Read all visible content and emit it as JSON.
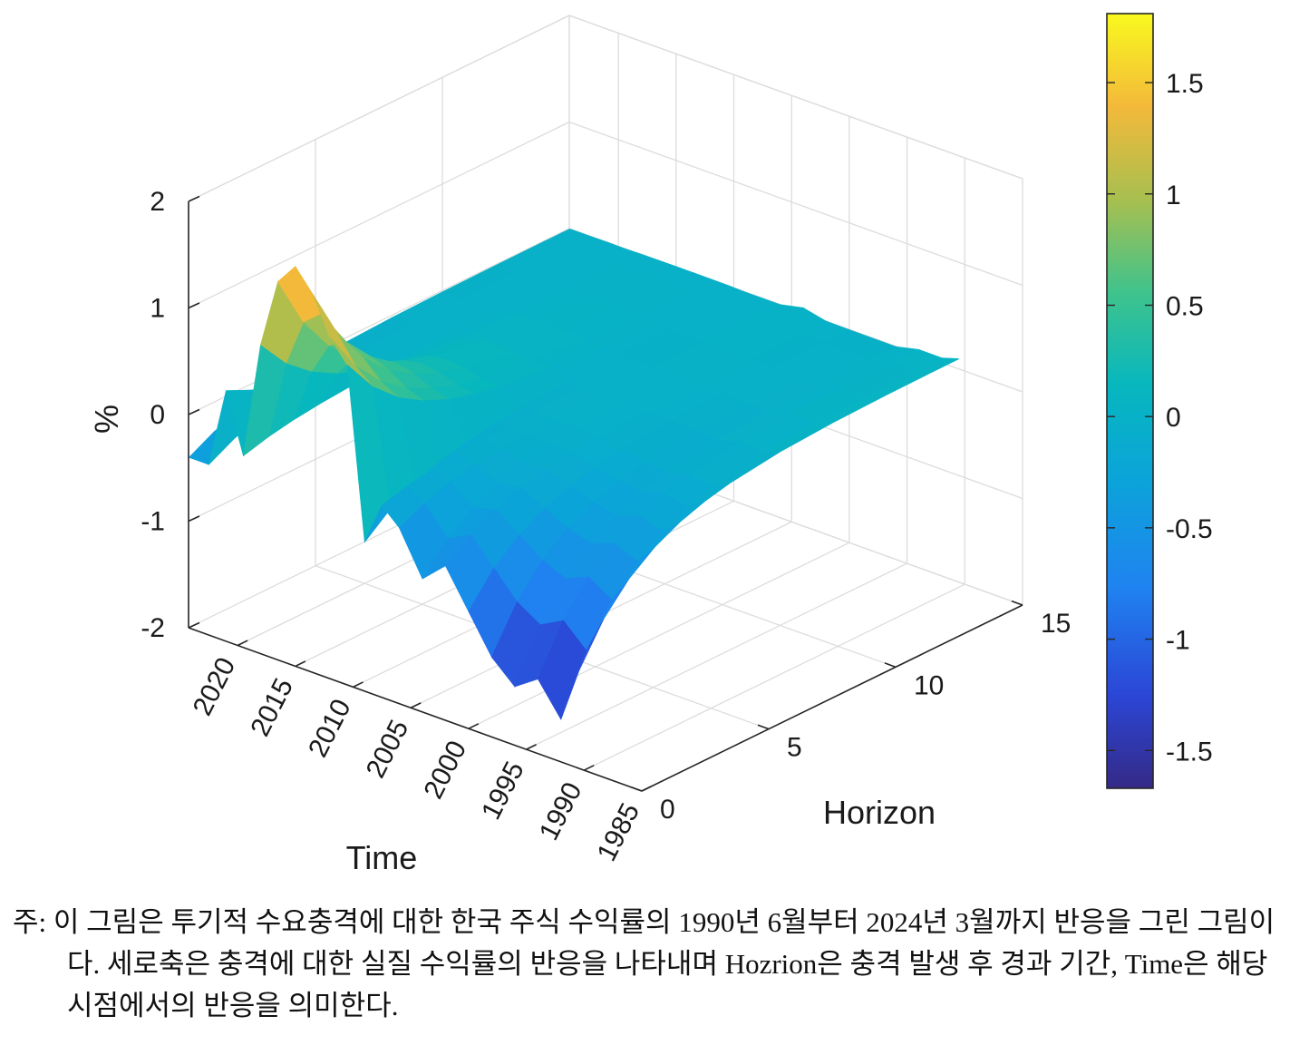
{
  "chart_data": {
    "type": "surface",
    "xlabel": "Time",
    "ylabel": "Horizon",
    "zlabel": "%",
    "x_ticks": [
      "2020",
      "2015",
      "2010",
      "2005",
      "2000",
      "1995",
      "1990",
      "1985"
    ],
    "x_tick_values": [
      2020,
      2015,
      2010,
      2005,
      2000,
      1995,
      1990,
      1985
    ],
    "y_ticks": [
      "0",
      "5",
      "10",
      "15"
    ],
    "y_tick_values": [
      0,
      5,
      10,
      15
    ],
    "z_ticks": [
      "-2",
      "-1",
      "0",
      "1",
      "2"
    ],
    "z_tick_values": [
      -2,
      -1,
      0,
      1,
      2
    ],
    "xlim": [
      1985,
      2024.25
    ],
    "ylim": [
      0,
      15
    ],
    "zlim": [
      -2,
      2
    ],
    "colorbar": {
      "ticks": [
        "1.5",
        "1",
        "0.5",
        "0",
        "-0.5",
        "-1",
        "-1.5"
      ],
      "tick_values": [
        1.5,
        1,
        0.5,
        0,
        -0.5,
        -1,
        -1.5
      ],
      "range": [
        -1.67,
        1.81
      ],
      "colormap": "parula"
    },
    "grid": true,
    "time": [
      1990.5,
      1992,
      1994,
      1996,
      1998,
      2000,
      2002,
      2004,
      2006,
      2007.5,
      2009,
      2010.5,
      2012,
      2013.5,
      2015,
      2016.5,
      2018,
      2019.5,
      2021,
      2022.5,
      2024.2
    ],
    "horizon": [
      0,
      1,
      2,
      3,
      4,
      5,
      6,
      8,
      10,
      12,
      14,
      15
    ],
    "response_at_horizon_0": [
      -1.1,
      -1.6,
      -1.3,
      -1.45,
      -1.25,
      -0.9,
      -0.55,
      -0.75,
      -0.35,
      -0.2,
      -0.6,
      1.0,
      1.2,
      1.55,
      1.75,
      1.55,
      0.9,
      -0.2,
      0.35,
      -0.4,
      -0.4
    ],
    "response_at_horizon_15": [
      0.1,
      0.05,
      0.05,
      0.0,
      0.0,
      0.0,
      0.0,
      0.05,
      0.0,
      0.0,
      0.0,
      0.0,
      0.0,
      0.0,
      0.0,
      0.0,
      0.0,
      0.0,
      0.0,
      0.0,
      0.0
    ]
  },
  "caption": {
    "prefix": "주:",
    "text": "이 그림은 투기적 수요충격에 대한 한국 주식 수익률의 1990년 6월부터 2024년 3월까지 반응을 그린 그림이다. 세로축은 충격에 대한 실질 수익률의 반응을 나타내며 Hozrion은 충격 발생 후 경과 기간, Time은 해당 시점에서의 반응을 의미한다."
  },
  "colors": {
    "grid": "#dcdcdc",
    "axis": "#262626",
    "background": "#ffffff"
  }
}
